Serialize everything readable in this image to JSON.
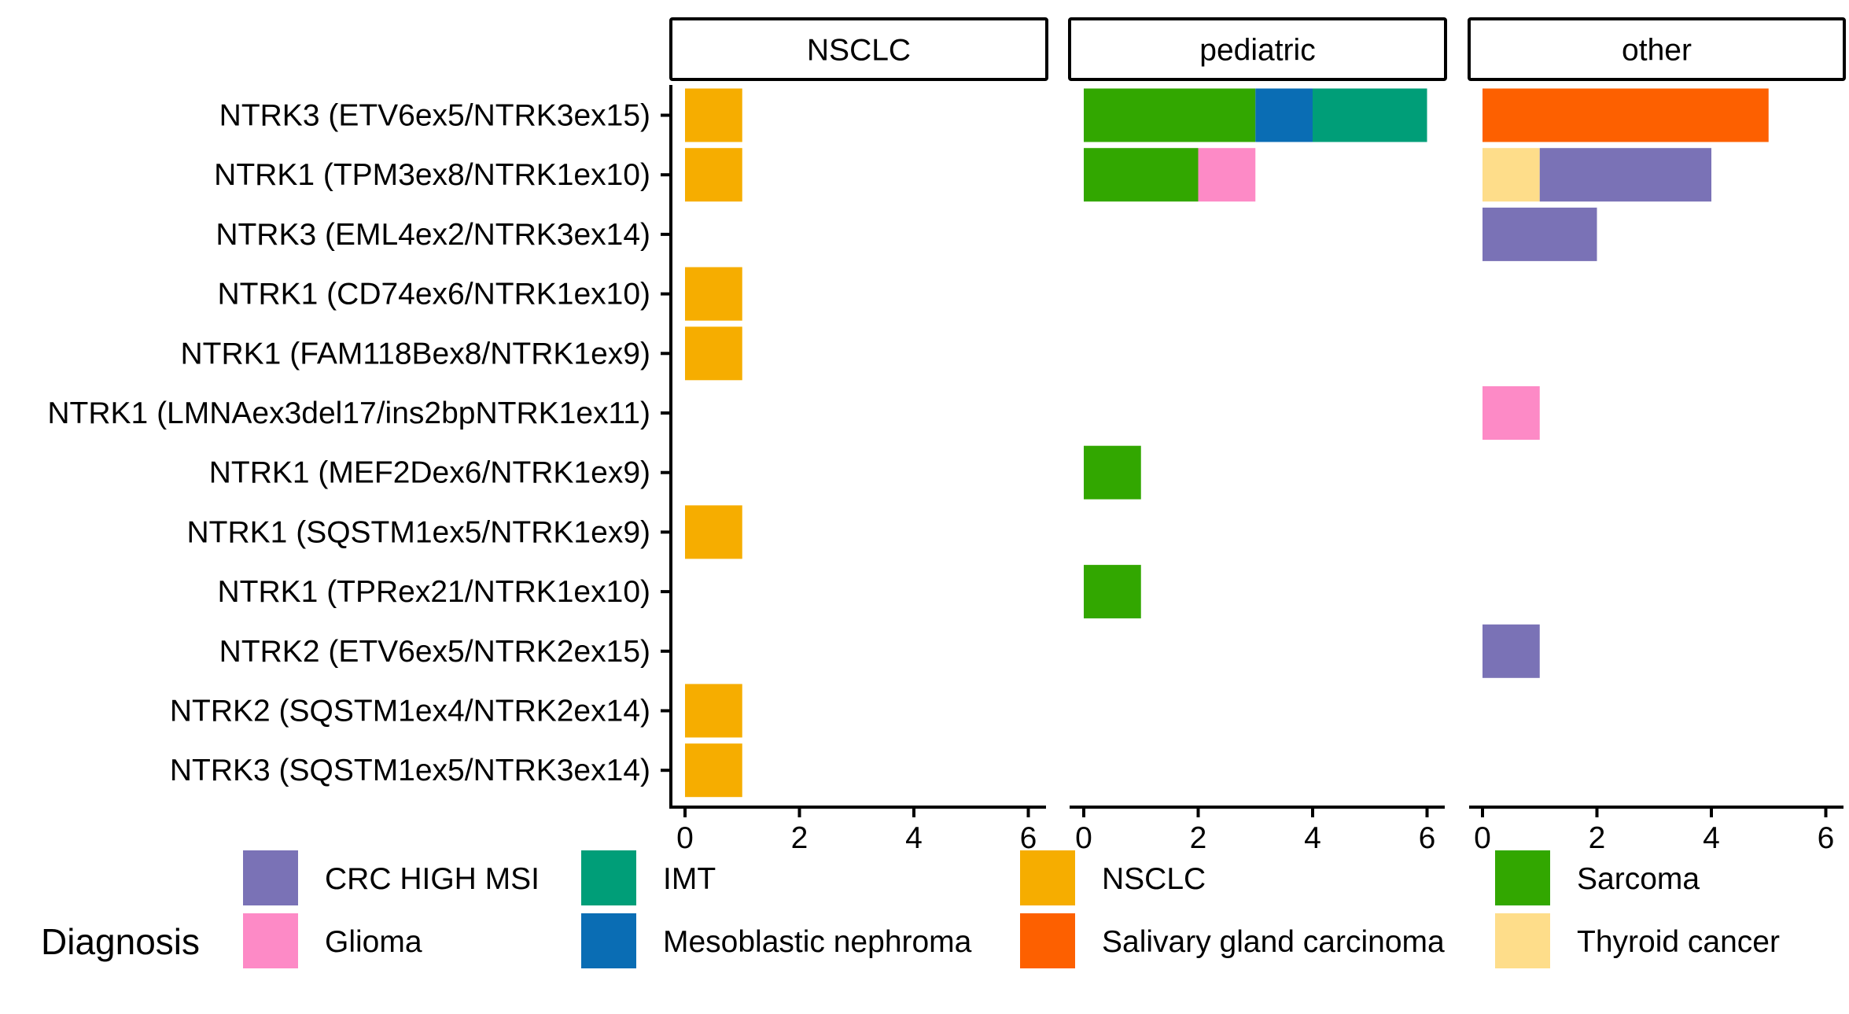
{
  "chart_data": {
    "type": "bar",
    "orientation": "horizontal",
    "stacked": true,
    "facets": [
      "NSCLC",
      "pediatric",
      "other"
    ],
    "categories": [
      "NTRK3 (ETV6ex5/NTRK3ex15)",
      "NTRK1 (TPM3ex8/NTRK1ex10)",
      "NTRK3 (EML4ex2/NTRK3ex14)",
      "NTRK1 (CD74ex6/NTRK1ex10)",
      "NTRK1 (FAM118Bex8/NTRK1ex9)",
      "NTRK1 (LMNAex3del17/ins2bpNTRK1ex11)",
      "NTRK1 (MEF2Dex6/NTRK1ex9)",
      "NTRK1 (SQSTM1ex5/NTRK1ex9)",
      "NTRK1 (TPRex21/NTRK1ex10)",
      "NTRK2 (ETV6ex5/NTRK2ex15)",
      "NTRK2 (SQSTM1ex4/NTRK2ex14)",
      "NTRK3 (SQSTM1ex5/NTRK3ex14)"
    ],
    "xlim": [
      0,
      6
    ],
    "xticks": [
      0,
      2,
      4,
      6
    ],
    "grid": false,
    "legend": {
      "title": "Diagnosis",
      "position": "bottom",
      "items": [
        {
          "name": "CRC HIGH MSI",
          "color": "#7a72b6"
        },
        {
          "name": "Glioma",
          "color": "#fd8ac6"
        },
        {
          "name": "IMT",
          "color": "#009e78"
        },
        {
          "name": "Mesoblastic nephroma",
          "color": "#0a6db4"
        },
        {
          "name": "NSCLC",
          "color": "#f6ad00"
        },
        {
          "name": "Salivary gland carcinoma",
          "color": "#fd6000"
        },
        {
          "name": "Sarcoma",
          "color": "#32a700"
        },
        {
          "name": "Thyroid cancer",
          "color": "#fedd8a"
        }
      ]
    },
    "bars": [
      {
        "facet": "NSCLC",
        "category": "NTRK3 (ETV6ex5/NTRK3ex15)",
        "segments": [
          {
            "diagnosis": "NSCLC",
            "value": 1
          }
        ]
      },
      {
        "facet": "NSCLC",
        "category": "NTRK1 (TPM3ex8/NTRK1ex10)",
        "segments": [
          {
            "diagnosis": "NSCLC",
            "value": 1
          }
        ]
      },
      {
        "facet": "NSCLC",
        "category": "NTRK1 (CD74ex6/NTRK1ex10)",
        "segments": [
          {
            "diagnosis": "NSCLC",
            "value": 1
          }
        ]
      },
      {
        "facet": "NSCLC",
        "category": "NTRK1 (FAM118Bex8/NTRK1ex9)",
        "segments": [
          {
            "diagnosis": "NSCLC",
            "value": 1
          }
        ]
      },
      {
        "facet": "NSCLC",
        "category": "NTRK1 (SQSTM1ex5/NTRK1ex9)",
        "segments": [
          {
            "diagnosis": "NSCLC",
            "value": 1
          }
        ]
      },
      {
        "facet": "NSCLC",
        "category": "NTRK2 (SQSTM1ex4/NTRK2ex14)",
        "segments": [
          {
            "diagnosis": "NSCLC",
            "value": 1
          }
        ]
      },
      {
        "facet": "NSCLC",
        "category": "NTRK3 (SQSTM1ex5/NTRK3ex14)",
        "segments": [
          {
            "diagnosis": "NSCLC",
            "value": 1
          }
        ]
      },
      {
        "facet": "pediatric",
        "category": "NTRK3 (ETV6ex5/NTRK3ex15)",
        "segments": [
          {
            "diagnosis": "Sarcoma",
            "value": 3
          },
          {
            "diagnosis": "Mesoblastic nephroma",
            "value": 1
          },
          {
            "diagnosis": "IMT",
            "value": 2
          }
        ]
      },
      {
        "facet": "pediatric",
        "category": "NTRK1 (TPM3ex8/NTRK1ex10)",
        "segments": [
          {
            "diagnosis": "Sarcoma",
            "value": 2
          },
          {
            "diagnosis": "Glioma",
            "value": 1
          }
        ]
      },
      {
        "facet": "pediatric",
        "category": "NTRK1 (MEF2Dex6/NTRK1ex9)",
        "segments": [
          {
            "diagnosis": "Sarcoma",
            "value": 1
          }
        ]
      },
      {
        "facet": "pediatric",
        "category": "NTRK1 (TPRex21/NTRK1ex10)",
        "segments": [
          {
            "diagnosis": "Sarcoma",
            "value": 1
          }
        ]
      },
      {
        "facet": "other",
        "category": "NTRK3 (ETV6ex5/NTRK3ex15)",
        "segments": [
          {
            "diagnosis": "Salivary gland carcinoma",
            "value": 5
          }
        ]
      },
      {
        "facet": "other",
        "category": "NTRK1 (TPM3ex8/NTRK1ex10)",
        "segments": [
          {
            "diagnosis": "Thyroid cancer",
            "value": 1
          },
          {
            "diagnosis": "CRC HIGH MSI",
            "value": 3
          }
        ]
      },
      {
        "facet": "other",
        "category": "NTRK3 (EML4ex2/NTRK3ex14)",
        "segments": [
          {
            "diagnosis": "CRC HIGH MSI",
            "value": 2
          }
        ]
      },
      {
        "facet": "other",
        "category": "NTRK1 (LMNAex3del17/ins2bpNTRK1ex11)",
        "segments": [
          {
            "diagnosis": "Glioma",
            "value": 1
          }
        ]
      },
      {
        "facet": "other",
        "category": "NTRK2 (ETV6ex5/NTRK2ex15)",
        "segments": [
          {
            "diagnosis": "CRC HIGH MSI",
            "value": 1
          }
        ]
      }
    ]
  }
}
